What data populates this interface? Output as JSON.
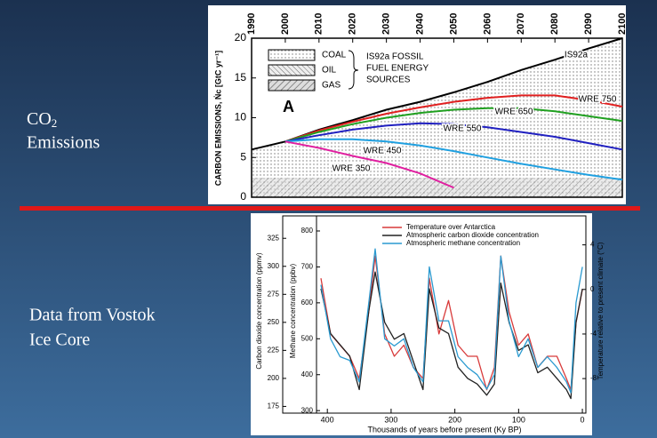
{
  "slide": {
    "label_top": {
      "main": "CO",
      "sub": "2",
      "line2": "Emissions"
    },
    "label_bottom": [
      "Data from Vostok",
      "Ice Core"
    ]
  },
  "chart_data": [
    {
      "type": "line",
      "y_label": "CARBON EMISSIONS, Ṅc [GtC yr⁻¹]",
      "legend_entries": [
        "COAL",
        "OIL",
        "GAS"
      ],
      "legend_note": [
        "IS92a FOSSIL",
        "FUEL ENERGY",
        "SOURCES"
      ],
      "panel_label": "A",
      "x": [
        1990,
        2000,
        2010,
        2020,
        2030,
        2040,
        2050,
        2060,
        2070,
        2080,
        2090,
        2100
      ],
      "xlim": [
        1990,
        2100
      ],
      "xticks": [
        1990,
        2000,
        2010,
        2020,
        2030,
        2040,
        2050,
        2060,
        2070,
        2080,
        2090,
        2100
      ],
      "ylim": [
        0,
        20
      ],
      "yticks": [
        0,
        5,
        10,
        15,
        20
      ],
      "series": [
        {
          "name": "IS92a",
          "color": "#000000",
          "values": [
            6,
            7,
            8.5,
            9.7,
            11,
            12,
            13.2,
            14.5,
            16,
            17.3,
            18.7,
            20
          ]
        },
        {
          "name": "WRE 750",
          "color": "#e02020",
          "values": [
            null,
            7,
            8.4,
            9.5,
            10.5,
            11.3,
            12,
            12.5,
            12.8,
            12.8,
            12.2,
            11.4
          ]
        },
        {
          "name": "WRE 650",
          "color": "#20a020",
          "values": [
            null,
            7,
            8.2,
            9.2,
            10,
            10.6,
            11,
            11.2,
            11.2,
            10.8,
            10.2,
            9.6
          ]
        },
        {
          "name": "WRE 550",
          "color": "#2020c0",
          "values": [
            null,
            7,
            7.8,
            8.5,
            9,
            9.3,
            9.2,
            8.8,
            8.2,
            7.6,
            6.8,
            6
          ]
        },
        {
          "name": "WRE 450",
          "color": "#20a0e0",
          "values": [
            null,
            7,
            7.3,
            7.3,
            7,
            6.5,
            5.8,
            5,
            4.2,
            3.5,
            2.8,
            2.2
          ]
        },
        {
          "name": "WRE 350",
          "color": "#e020a0",
          "values": [
            null,
            7,
            6.2,
            5.2,
            4.3,
            3,
            1.2,
            null,
            null,
            null,
            null,
            null
          ]
        }
      ]
    },
    {
      "type": "line",
      "legend_corner": "upper center",
      "x_label": "Thousands of years before present (Ky BP)",
      "y_label": "Carbon dioxide concentration (ppmv)",
      "y2_label": "Methane concentration (ppbv)",
      "y3_label": "Temperature relative to present climate (°C)",
      "x": [
        410,
        395,
        380,
        365,
        350,
        335,
        325,
        310,
        295,
        280,
        265,
        250,
        240,
        225,
        210,
        195,
        180,
        165,
        150,
        138,
        128,
        115,
        100,
        85,
        70,
        55,
        40,
        25,
        18,
        10,
        0
      ],
      "xlim": [
        470,
        -5.5
      ],
      "xticks": [
        400,
        300,
        200,
        100,
        0
      ],
      "ylim": [
        169,
        345
      ],
      "yticks": [
        175,
        200,
        225,
        250,
        275,
        300,
        325
      ],
      "y2lim": [
        293,
        842
      ],
      "y2ticks": [
        300,
        400,
        500,
        600,
        700,
        800
      ],
      "y3lim": [
        -11.1,
        6.6
      ],
      "y3ticks": [
        -8,
        -4,
        0,
        4
      ],
      "series": [
        {
          "name": "Temperature over Antarctica",
          "color": "#d83a3a",
          "axis": "y3",
          "values": [
            1,
            -4,
            -5,
            -6,
            -8,
            -2,
            3,
            -4,
            -6,
            -5,
            -7,
            -8,
            1,
            -4,
            -1,
            -5,
            -6,
            -6,
            -9,
            -7,
            3,
            -2,
            -5,
            -4,
            -7,
            -6,
            -6,
            -8,
            -9,
            -3,
            0
          ]
        },
        {
          "name": "Atmospheric carbon dioxide concentration",
          "color": "#222222",
          "values": [
            280,
            240,
            230,
            220,
            190,
            260,
            295,
            250,
            235,
            240,
            215,
            190,
            280,
            245,
            240,
            210,
            200,
            195,
            185,
            195,
            285,
            250,
            225,
            230,
            205,
            210,
            200,
            190,
            182,
            250,
            280
          ]
        },
        {
          "name": "Atmospheric methane concentration",
          "color": "#2a9ad0",
          "axis": "y2",
          "values": [
            650,
            500,
            450,
            440,
            380,
            600,
            750,
            500,
            480,
            500,
            420,
            380,
            700,
            550,
            550,
            450,
            420,
            400,
            360,
            400,
            730,
            550,
            450,
            500,
            420,
            450,
            420,
            380,
            350,
            600,
            700
          ]
        }
      ]
    }
  ]
}
